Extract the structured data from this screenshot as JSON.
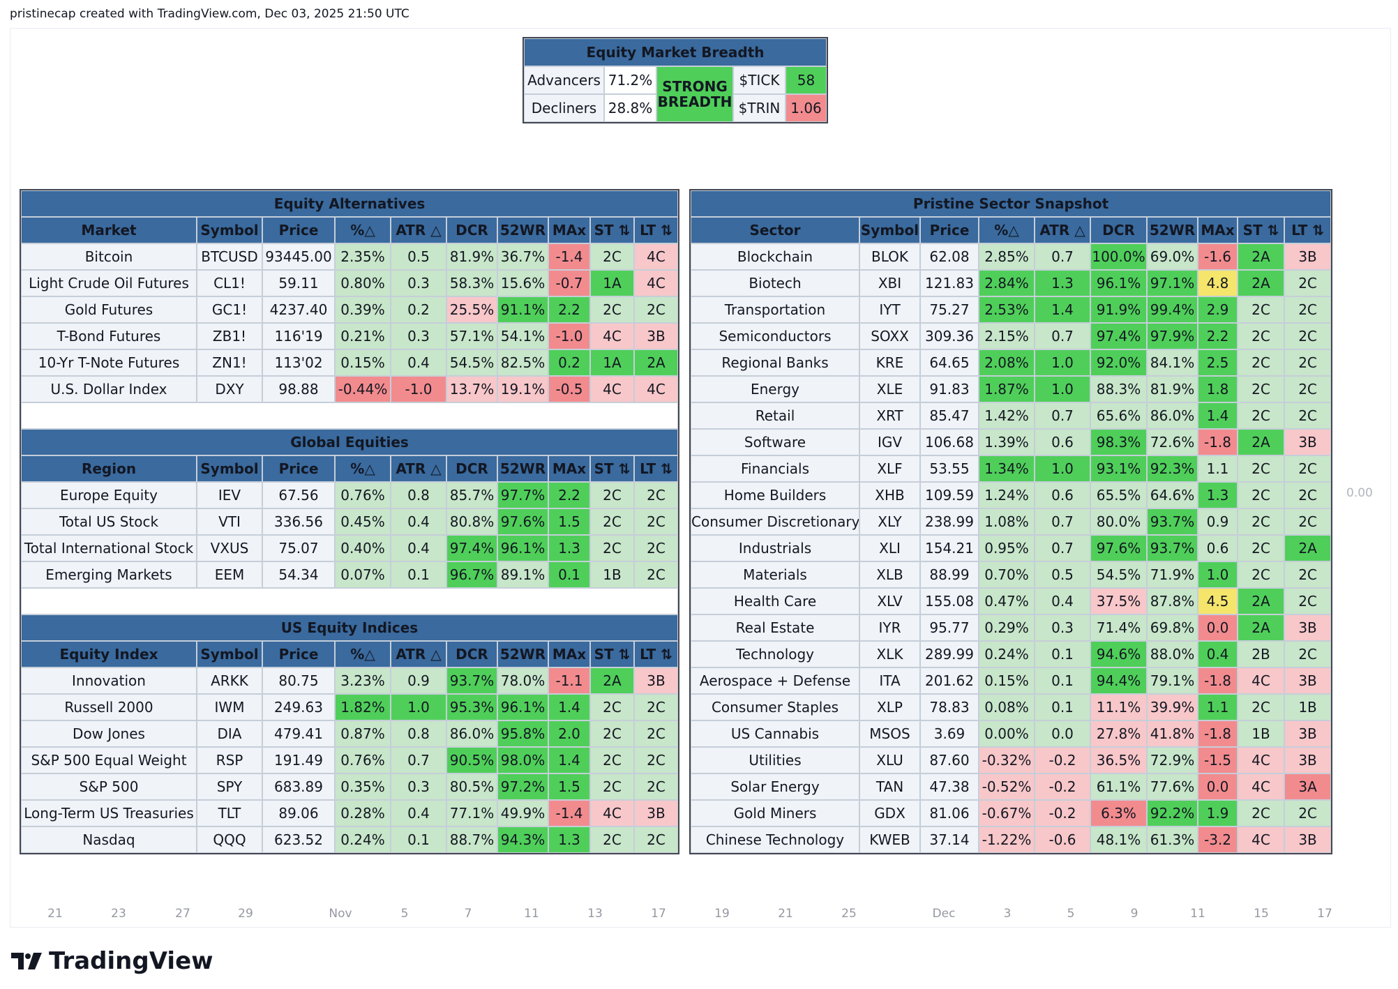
{
  "caption": "pristinecap created with TradingView.com, Dec 03, 2025 21:50 UTC",
  "breadth": {
    "title": "Equity Market Breadth",
    "advancers_label": "Advancers",
    "advancers_value": "71.2%",
    "decliners_label": "Decliners",
    "decliners_value": "28.8%",
    "status": "STRONG BREADTH",
    "tick_label": "$TICK",
    "tick_value": "58",
    "trin_label": "$TRIN",
    "trin_value": "1.06"
  },
  "common_headers": [
    "%△",
    "ATR △",
    "DCR",
    "52WR",
    "MAx",
    "ST ⇅",
    "LT ⇅"
  ],
  "symbol_header": "Symbol",
  "price_header": "Price",
  "tables": [
    {
      "title": "Equity Alternatives",
      "first_header": "Market",
      "rows": [
        {
          "name": "Bitcoin",
          "symbol": "BTCUSD",
          "price": "93445.00",
          "pct": "2.35%",
          "atr": "0.5",
          "dcr": "81.9%",
          "wr": "36.7%",
          "max": "-1.4",
          "st": "2C",
          "lt": "4C",
          "c": [
            "g1",
            "g1",
            "g1",
            "g1",
            "r2",
            "g1",
            "r1"
          ]
        },
        {
          "name": "Light Crude Oil Futures",
          "symbol": "CL1!",
          "price": "59.11",
          "pct": "0.80%",
          "atr": "0.3",
          "dcr": "58.3%",
          "wr": "15.6%",
          "max": "-0.7",
          "st": "1A",
          "lt": "4C",
          "c": [
            "g1",
            "g1",
            "g1",
            "g1",
            "r2",
            "g2",
            "r1"
          ]
        },
        {
          "name": "Gold Futures",
          "symbol": "GC1!",
          "price": "4237.40",
          "pct": "0.39%",
          "atr": "0.2",
          "dcr": "25.5%",
          "wr": "91.1%",
          "max": "2.2",
          "st": "2C",
          "lt": "2C",
          "c": [
            "g1",
            "g1",
            "r1",
            "g2",
            "g2",
            "g1",
            "g1"
          ]
        },
        {
          "name": "T-Bond Futures",
          "symbol": "ZB1!",
          "price": "116'19",
          "pct": "0.21%",
          "atr": "0.3",
          "dcr": "57.1%",
          "wr": "54.1%",
          "max": "-1.0",
          "st": "4C",
          "lt": "3B",
          "c": [
            "g1",
            "g1",
            "g1",
            "g1",
            "r2",
            "r1",
            "r1"
          ]
        },
        {
          "name": "10-Yr T-Note Futures",
          "symbol": "ZN1!",
          "price": "113'02",
          "pct": "0.15%",
          "atr": "0.4",
          "dcr": "54.5%",
          "wr": "82.5%",
          "max": "0.2",
          "st": "1A",
          "lt": "2A",
          "c": [
            "g1",
            "g1",
            "g1",
            "g1",
            "g2",
            "g2",
            "g2"
          ]
        },
        {
          "name": "U.S. Dollar Index",
          "symbol": "DXY",
          "price": "98.88",
          "pct": "-0.44%",
          "atr": "-1.0",
          "dcr": "13.7%",
          "wr": "19.1%",
          "max": "-0.5",
          "st": "4C",
          "lt": "4C",
          "c": [
            "r2",
            "r2",
            "r1",
            "r1",
            "r2",
            "r1",
            "r1"
          ]
        }
      ]
    },
    {
      "title": "Global Equities",
      "first_header": "Region",
      "rows": [
        {
          "name": "Europe Equity",
          "symbol": "IEV",
          "price": "67.56",
          "pct": "0.76%",
          "atr": "0.8",
          "dcr": "85.7%",
          "wr": "97.7%",
          "max": "2.2",
          "st": "2C",
          "lt": "2C",
          "c": [
            "g1",
            "g1",
            "g1",
            "g2",
            "g2",
            "g1",
            "g1"
          ]
        },
        {
          "name": "Total US Stock",
          "symbol": "VTI",
          "price": "336.56",
          "pct": "0.45%",
          "atr": "0.4",
          "dcr": "80.8%",
          "wr": "97.6%",
          "max": "1.5",
          "st": "2C",
          "lt": "2C",
          "c": [
            "g1",
            "g1",
            "g1",
            "g2",
            "g2",
            "g1",
            "g1"
          ]
        },
        {
          "name": "Total International Stock",
          "symbol": "VXUS",
          "price": "75.07",
          "pct": "0.40%",
          "atr": "0.4",
          "dcr": "97.4%",
          "wr": "96.1%",
          "max": "1.3",
          "st": "2C",
          "lt": "2C",
          "c": [
            "g1",
            "g1",
            "g2",
            "g2",
            "g2",
            "g1",
            "g1"
          ]
        },
        {
          "name": "Emerging Markets",
          "symbol": "EEM",
          "price": "54.34",
          "pct": "0.07%",
          "atr": "0.1",
          "dcr": "96.7%",
          "wr": "89.1%",
          "max": "0.1",
          "st": "1B",
          "lt": "2C",
          "c": [
            "g1",
            "g1",
            "g2",
            "g1",
            "g2",
            "g1",
            "g1"
          ]
        }
      ]
    },
    {
      "title": "US Equity Indices",
      "first_header": "Equity Index",
      "rows": [
        {
          "name": "Innovation",
          "symbol": "ARKK",
          "price": "80.75",
          "pct": "3.23%",
          "atr": "0.9",
          "dcr": "93.7%",
          "wr": "78.0%",
          "max": "-1.1",
          "st": "2A",
          "lt": "3B",
          "c": [
            "g1",
            "g1",
            "g2",
            "g1",
            "r2",
            "g2",
            "r1"
          ]
        },
        {
          "name": "Russell 2000",
          "symbol": "IWM",
          "price": "249.63",
          "pct": "1.82%",
          "atr": "1.0",
          "dcr": "95.3%",
          "wr": "96.1%",
          "max": "1.4",
          "st": "2C",
          "lt": "2C",
          "c": [
            "g2",
            "g2",
            "g2",
            "g2",
            "g2",
            "g1",
            "g1"
          ]
        },
        {
          "name": "Dow Jones",
          "symbol": "DIA",
          "price": "479.41",
          "pct": "0.87%",
          "atr": "0.8",
          "dcr": "86.0%",
          "wr": "95.8%",
          "max": "2.0",
          "st": "2C",
          "lt": "2C",
          "c": [
            "g1",
            "g1",
            "g1",
            "g2",
            "g2",
            "g1",
            "g1"
          ]
        },
        {
          "name": "S&P 500 Equal Weight",
          "symbol": "RSP",
          "price": "191.49",
          "pct": "0.76%",
          "atr": "0.7",
          "dcr": "90.5%",
          "wr": "98.0%",
          "max": "1.4",
          "st": "2C",
          "lt": "2C",
          "c": [
            "g1",
            "g1",
            "g2",
            "g2",
            "g2",
            "g1",
            "g1"
          ]
        },
        {
          "name": "S&P 500",
          "symbol": "SPY",
          "price": "683.89",
          "pct": "0.35%",
          "atr": "0.3",
          "dcr": "80.5%",
          "wr": "97.2%",
          "max": "1.5",
          "st": "2C",
          "lt": "2C",
          "c": [
            "g1",
            "g1",
            "g1",
            "g2",
            "g2",
            "g1",
            "g1"
          ]
        },
        {
          "name": "Long-Term US Treasuries",
          "symbol": "TLT",
          "price": "89.06",
          "pct": "0.28%",
          "atr": "0.4",
          "dcr": "77.1%",
          "wr": "49.9%",
          "max": "-1.4",
          "st": "4C",
          "lt": "3B",
          "c": [
            "g1",
            "g1",
            "g1",
            "g1",
            "r2",
            "r1",
            "r1"
          ]
        },
        {
          "name": "Nasdaq",
          "symbol": "QQQ",
          "price": "623.52",
          "pct": "0.24%",
          "atr": "0.1",
          "dcr": "88.7%",
          "wr": "94.3%",
          "max": "1.3",
          "st": "2C",
          "lt": "2C",
          "c": [
            "g1",
            "g1",
            "g1",
            "g2",
            "g2",
            "g1",
            "g1"
          ]
        }
      ]
    }
  ],
  "sector_table": {
    "title": "Pristine Sector Snapshot",
    "first_header": "Sector",
    "rows": [
      {
        "name": "Blockchain",
        "symbol": "BLOK",
        "price": "62.08",
        "pct": "2.85%",
        "atr": "0.7",
        "dcr": "100.0%",
        "wr": "69.0%",
        "max": "-1.6",
        "st": "2A",
        "lt": "3B",
        "c": [
          "g1",
          "g1",
          "g2",
          "g1",
          "r2",
          "g2",
          "r1"
        ]
      },
      {
        "name": "Biotech",
        "symbol": "XBI",
        "price": "121.83",
        "pct": "2.84%",
        "atr": "1.3",
        "dcr": "96.1%",
        "wr": "97.1%",
        "max": "4.8",
        "st": "2A",
        "lt": "2C",
        "c": [
          "g2",
          "g2",
          "g2",
          "g2",
          "y1",
          "g2",
          "g1"
        ]
      },
      {
        "name": "Transportation",
        "symbol": "IYT",
        "price": "75.27",
        "pct": "2.53%",
        "atr": "1.4",
        "dcr": "91.9%",
        "wr": "99.4%",
        "max": "2.9",
        "st": "2C",
        "lt": "2C",
        "c": [
          "g2",
          "g2",
          "g2",
          "g2",
          "g2",
          "g1",
          "g1"
        ]
      },
      {
        "name": "Semiconductors",
        "symbol": "SOXX",
        "price": "309.36",
        "pct": "2.15%",
        "atr": "0.7",
        "dcr": "97.4%",
        "wr": "97.9%",
        "max": "2.2",
        "st": "2C",
        "lt": "2C",
        "c": [
          "g1",
          "g1",
          "g2",
          "g2",
          "g2",
          "g1",
          "g1"
        ]
      },
      {
        "name": "Regional Banks",
        "symbol": "KRE",
        "price": "64.65",
        "pct": "2.08%",
        "atr": "1.0",
        "dcr": "92.0%",
        "wr": "84.1%",
        "max": "2.5",
        "st": "2C",
        "lt": "2C",
        "c": [
          "g2",
          "g2",
          "g2",
          "g1",
          "g2",
          "g1",
          "g1"
        ]
      },
      {
        "name": "Energy",
        "symbol": "XLE",
        "price": "91.83",
        "pct": "1.87%",
        "atr": "1.0",
        "dcr": "88.3%",
        "wr": "81.9%",
        "max": "1.8",
        "st": "2C",
        "lt": "2C",
        "c": [
          "g2",
          "g2",
          "g1",
          "g1",
          "g2",
          "g1",
          "g1"
        ]
      },
      {
        "name": "Retail",
        "symbol": "XRT",
        "price": "85.47",
        "pct": "1.42%",
        "atr": "0.7",
        "dcr": "65.6%",
        "wr": "86.0%",
        "max": "1.4",
        "st": "2C",
        "lt": "2C",
        "c": [
          "g1",
          "g1",
          "g1",
          "g1",
          "g2",
          "g1",
          "g1"
        ]
      },
      {
        "name": "Software",
        "symbol": "IGV",
        "price": "106.68",
        "pct": "1.39%",
        "atr": "0.6",
        "dcr": "98.3%",
        "wr": "72.6%",
        "max": "-1.8",
        "st": "2A",
        "lt": "3B",
        "c": [
          "g1",
          "g1",
          "g2",
          "g1",
          "r2",
          "g2",
          "r1"
        ]
      },
      {
        "name": "Financials",
        "symbol": "XLF",
        "price": "53.55",
        "pct": "1.34%",
        "atr": "1.0",
        "dcr": "93.1%",
        "wr": "92.3%",
        "max": "1.1",
        "st": "2C",
        "lt": "2C",
        "c": [
          "g2",
          "g2",
          "g2",
          "g2",
          "g1",
          "g1",
          "g1"
        ]
      },
      {
        "name": "Home Builders",
        "symbol": "XHB",
        "price": "109.59",
        "pct": "1.24%",
        "atr": "0.6",
        "dcr": "65.5%",
        "wr": "64.6%",
        "max": "1.3",
        "st": "2C",
        "lt": "2C",
        "c": [
          "g1",
          "g1",
          "g1",
          "g1",
          "g2",
          "g1",
          "g1"
        ]
      },
      {
        "name": "Consumer Discretionary",
        "symbol": "XLY",
        "price": "238.99",
        "pct": "1.08%",
        "atr": "0.7",
        "dcr": "80.0%",
        "wr": "93.7%",
        "max": "0.9",
        "st": "2C",
        "lt": "2C",
        "c": [
          "g1",
          "g1",
          "g1",
          "g2",
          "g1",
          "g1",
          "g1"
        ]
      },
      {
        "name": "Industrials",
        "symbol": "XLI",
        "price": "154.21",
        "pct": "0.95%",
        "atr": "0.7",
        "dcr": "97.6%",
        "wr": "93.7%",
        "max": "0.6",
        "st": "2C",
        "lt": "2A",
        "c": [
          "g1",
          "g1",
          "g2",
          "g2",
          "g1",
          "g1",
          "g2"
        ]
      },
      {
        "name": "Materials",
        "symbol": "XLB",
        "price": "88.99",
        "pct": "0.70%",
        "atr": "0.5",
        "dcr": "54.5%",
        "wr": "71.9%",
        "max": "1.0",
        "st": "2C",
        "lt": "2C",
        "c": [
          "g1",
          "g1",
          "g1",
          "g1",
          "g2",
          "g1",
          "g1"
        ]
      },
      {
        "name": "Health Care",
        "symbol": "XLV",
        "price": "155.08",
        "pct": "0.47%",
        "atr": "0.4",
        "dcr": "37.5%",
        "wr": "87.8%",
        "max": "4.5",
        "st": "2A",
        "lt": "2C",
        "c": [
          "g1",
          "g1",
          "r1",
          "g1",
          "y1",
          "g2",
          "g1"
        ]
      },
      {
        "name": "Real Estate",
        "symbol": "IYR",
        "price": "95.77",
        "pct": "0.29%",
        "atr": "0.3",
        "dcr": "71.4%",
        "wr": "69.8%",
        "max": "0.0",
        "st": "2A",
        "lt": "3B",
        "c": [
          "g1",
          "g1",
          "g1",
          "g1",
          "r2",
          "g2",
          "r1"
        ]
      },
      {
        "name": "Technology",
        "symbol": "XLK",
        "price": "289.99",
        "pct": "0.24%",
        "atr": "0.1",
        "dcr": "94.6%",
        "wr": "88.0%",
        "max": "0.4",
        "st": "2B",
        "lt": "2C",
        "c": [
          "g1",
          "g1",
          "g2",
          "g1",
          "g2",
          "g1",
          "g1"
        ]
      },
      {
        "name": "Aerospace + Defense",
        "symbol": "ITA",
        "price": "201.62",
        "pct": "0.15%",
        "atr": "0.1",
        "dcr": "94.4%",
        "wr": "79.1%",
        "max": "-1.8",
        "st": "4C",
        "lt": "3B",
        "c": [
          "g1",
          "g1",
          "g2",
          "g1",
          "r2",
          "r1",
          "r1"
        ]
      },
      {
        "name": "Consumer Staples",
        "symbol": "XLP",
        "price": "78.83",
        "pct": "0.08%",
        "atr": "0.1",
        "dcr": "11.1%",
        "wr": "39.9%",
        "max": "1.1",
        "st": "2C",
        "lt": "1B",
        "c": [
          "g1",
          "g1",
          "r1",
          "r1",
          "g2",
          "g1",
          "g1"
        ]
      },
      {
        "name": "US Cannabis",
        "symbol": "MSOS",
        "price": "3.69",
        "pct": "0.00%",
        "atr": "0.0",
        "dcr": "27.8%",
        "wr": "41.8%",
        "max": "-1.8",
        "st": "1B",
        "lt": "3B",
        "c": [
          "g1",
          "g1",
          "r1",
          "r1",
          "r2",
          "g1",
          "r1"
        ]
      },
      {
        "name": "Utilities",
        "symbol": "XLU",
        "price": "87.60",
        "pct": "-0.32%",
        "atr": "-0.2",
        "dcr": "36.5%",
        "wr": "72.9%",
        "max": "-1.5",
        "st": "4C",
        "lt": "3B",
        "c": [
          "r1",
          "r1",
          "r1",
          "g1",
          "r2",
          "r1",
          "r1"
        ]
      },
      {
        "name": "Solar Energy",
        "symbol": "TAN",
        "price": "47.38",
        "pct": "-0.52%",
        "atr": "-0.2",
        "dcr": "61.1%",
        "wr": "77.6%",
        "max": "0.0",
        "st": "4C",
        "lt": "3A",
        "c": [
          "r1",
          "r1",
          "g1",
          "g1",
          "r2",
          "r1",
          "r2"
        ]
      },
      {
        "name": "Gold Miners",
        "symbol": "GDX",
        "price": "81.06",
        "pct": "-0.67%",
        "atr": "-0.2",
        "dcr": "6.3%",
        "wr": "92.2%",
        "max": "1.9",
        "st": "2C",
        "lt": "2C",
        "c": [
          "r1",
          "r1",
          "r2",
          "g2",
          "g2",
          "g1",
          "g1"
        ]
      },
      {
        "name": "Chinese Technology",
        "symbol": "KWEB",
        "price": "37.14",
        "pct": "-1.22%",
        "atr": "-0.6",
        "dcr": "48.1%",
        "wr": "61.3%",
        "max": "-3.2",
        "st": "4C",
        "lt": "3B",
        "c": [
          "r1",
          "r1",
          "g1",
          "g1",
          "r2",
          "r1",
          "r1"
        ]
      }
    ]
  },
  "side_value": "0.00",
  "time_axis": [
    "21",
    "23",
    "27",
    "29",
    "Nov",
    "5",
    "7",
    "11",
    "13",
    "17",
    "19",
    "21",
    "25",
    "Dec",
    "3",
    "5",
    "9",
    "11",
    "15",
    "17"
  ],
  "brand_name": "TradingView",
  "colors": {
    "header_blue": "#3a6a9e",
    "light_green": "#c8e6c9",
    "strong_green": "#4fcf59",
    "light_red": "#f8c7c9",
    "strong_red": "#f28b8e",
    "yellow": "#f5e56b"
  }
}
